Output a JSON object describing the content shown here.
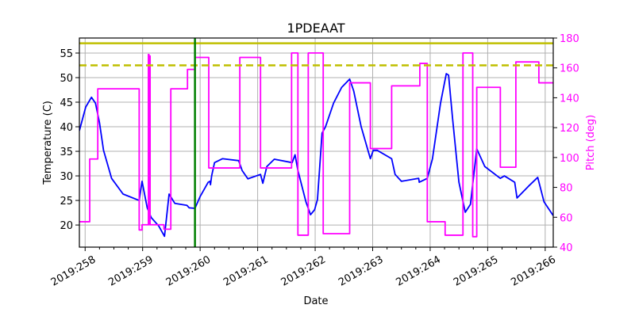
{
  "chart_data": {
    "type": "line",
    "title": "1PDEAAT",
    "xlabel": "Date",
    "ylabel": "Temperature (C)",
    "y2label": "Pitch (deg)",
    "xlim": [
      257.9,
      266.14
    ],
    "ylim": [
      15.5,
      58.06
    ],
    "y2lim": [
      40,
      180
    ],
    "grid": true,
    "x_ticks": [
      258,
      259,
      260,
      261,
      262,
      263,
      264,
      265,
      266
    ],
    "x_tick_labels": [
      "2019:258",
      "2019:259",
      "2019:260",
      "2019:261",
      "2019:262",
      "2019:263",
      "2019:264",
      "2019:265",
      "2019:266"
    ],
    "y_ticks": [
      20,
      25,
      30,
      35,
      40,
      45,
      50,
      55
    ],
    "y2_ticks": [
      40,
      60,
      80,
      100,
      120,
      140,
      160,
      180
    ],
    "colors": {
      "temperature": "#0000ff",
      "pitch": "#ff00ff",
      "limits": "#bfbf00",
      "marker": "#008000",
      "grid": "#b0b0b0"
    },
    "hlines": [
      {
        "y": 57.0,
        "style": "solid"
      },
      {
        "y": 52.5,
        "style": "dashed"
      }
    ],
    "vlines": [
      {
        "x": 259.91
      }
    ],
    "series": [
      {
        "axis": "left",
        "step": false,
        "points": [
          [
            257.9,
            39.2
          ],
          [
            258.01,
            44
          ],
          [
            258.11,
            46
          ],
          [
            258.18,
            44.8
          ],
          [
            258.25,
            40.8
          ],
          [
            258.32,
            35.2
          ],
          [
            258.46,
            29.5
          ],
          [
            258.66,
            26.3
          ],
          [
            258.94,
            25
          ],
          [
            258.99,
            28.9
          ],
          [
            259.08,
            23.5
          ],
          [
            259.15,
            21.5
          ],
          [
            259.28,
            19.8
          ],
          [
            259.38,
            17.7
          ],
          [
            259.46,
            26.3
          ],
          [
            259.56,
            24.4
          ],
          [
            259.77,
            24
          ],
          [
            259.81,
            23.5
          ],
          [
            259.91,
            23.4
          ],
          [
            260.0,
            25.8
          ],
          [
            260.14,
            28.7
          ],
          [
            260.17,
            28.9
          ],
          [
            260.18,
            28.2
          ],
          [
            260.2,
            30
          ],
          [
            260.25,
            32.7
          ],
          [
            260.39,
            33.5
          ],
          [
            260.67,
            33.1
          ],
          [
            260.73,
            31.1
          ],
          [
            260.83,
            29.4
          ],
          [
            261.05,
            30.3
          ],
          [
            261.09,
            28.5
          ],
          [
            261.16,
            31.9
          ],
          [
            261.29,
            33.4
          ],
          [
            261.6,
            32.7
          ],
          [
            261.65,
            34.3
          ],
          [
            261.7,
            31.1
          ],
          [
            261.84,
            24.7
          ],
          [
            261.92,
            22.1
          ],
          [
            261.99,
            23.1
          ],
          [
            262.04,
            25.2
          ],
          [
            262.12,
            38.7
          ],
          [
            262.18,
            40
          ],
          [
            262.32,
            44.8
          ],
          [
            262.46,
            48
          ],
          [
            262.6,
            49.7
          ],
          [
            262.67,
            47.3
          ],
          [
            262.8,
            40
          ],
          [
            262.96,
            33.5
          ],
          [
            263.01,
            35.2
          ],
          [
            263.08,
            35.2
          ],
          [
            263.33,
            33.5
          ],
          [
            263.39,
            30.3
          ],
          [
            263.5,
            28.9
          ],
          [
            263.8,
            29.5
          ],
          [
            263.81,
            28.7
          ],
          [
            263.95,
            29.5
          ],
          [
            264.04,
            33.5
          ],
          [
            264.18,
            44.8
          ],
          [
            264.28,
            50.8
          ],
          [
            264.32,
            50.5
          ],
          [
            264.39,
            41.6
          ],
          [
            264.5,
            28.7
          ],
          [
            264.61,
            22.6
          ],
          [
            264.7,
            24.2
          ],
          [
            264.81,
            35.5
          ],
          [
            264.95,
            31.9
          ],
          [
            265.22,
            29.5
          ],
          [
            265.29,
            30
          ],
          [
            265.47,
            28.7
          ],
          [
            265.51,
            25.5
          ],
          [
            265.71,
            27.9
          ],
          [
            265.87,
            29.7
          ],
          [
            265.98,
            24.7
          ],
          [
            266.14,
            21.9
          ]
        ]
      },
      {
        "axis": "right",
        "step": true,
        "points": [
          [
            257.9,
            57
          ],
          [
            258.08,
            99
          ],
          [
            258.22,
            146
          ],
          [
            258.94,
            51.5
          ],
          [
            258.99,
            55
          ],
          [
            259.1,
            169
          ],
          [
            259.11,
            55
          ],
          [
            259.12,
            168
          ],
          [
            259.13,
            55
          ],
          [
            259.37,
            52
          ],
          [
            259.49,
            146
          ],
          [
            259.78,
            159
          ],
          [
            259.91,
            167
          ],
          [
            260.15,
            93
          ],
          [
            260.69,
            167
          ],
          [
            261.05,
            93
          ],
          [
            261.59,
            170
          ],
          [
            261.7,
            48
          ],
          [
            261.88,
            170
          ],
          [
            262.14,
            49
          ],
          [
            262.6,
            150
          ],
          [
            262.96,
            106
          ],
          [
            263.33,
            148
          ],
          [
            263.82,
            163
          ],
          [
            263.95,
            57
          ],
          [
            264.26,
            48
          ],
          [
            264.57,
            170
          ],
          [
            264.74,
            47
          ],
          [
            264.81,
            147
          ],
          [
            265.22,
            93.5
          ],
          [
            265.49,
            164
          ],
          [
            265.89,
            150
          ],
          [
            266.14,
            150
          ]
        ]
      }
    ]
  }
}
